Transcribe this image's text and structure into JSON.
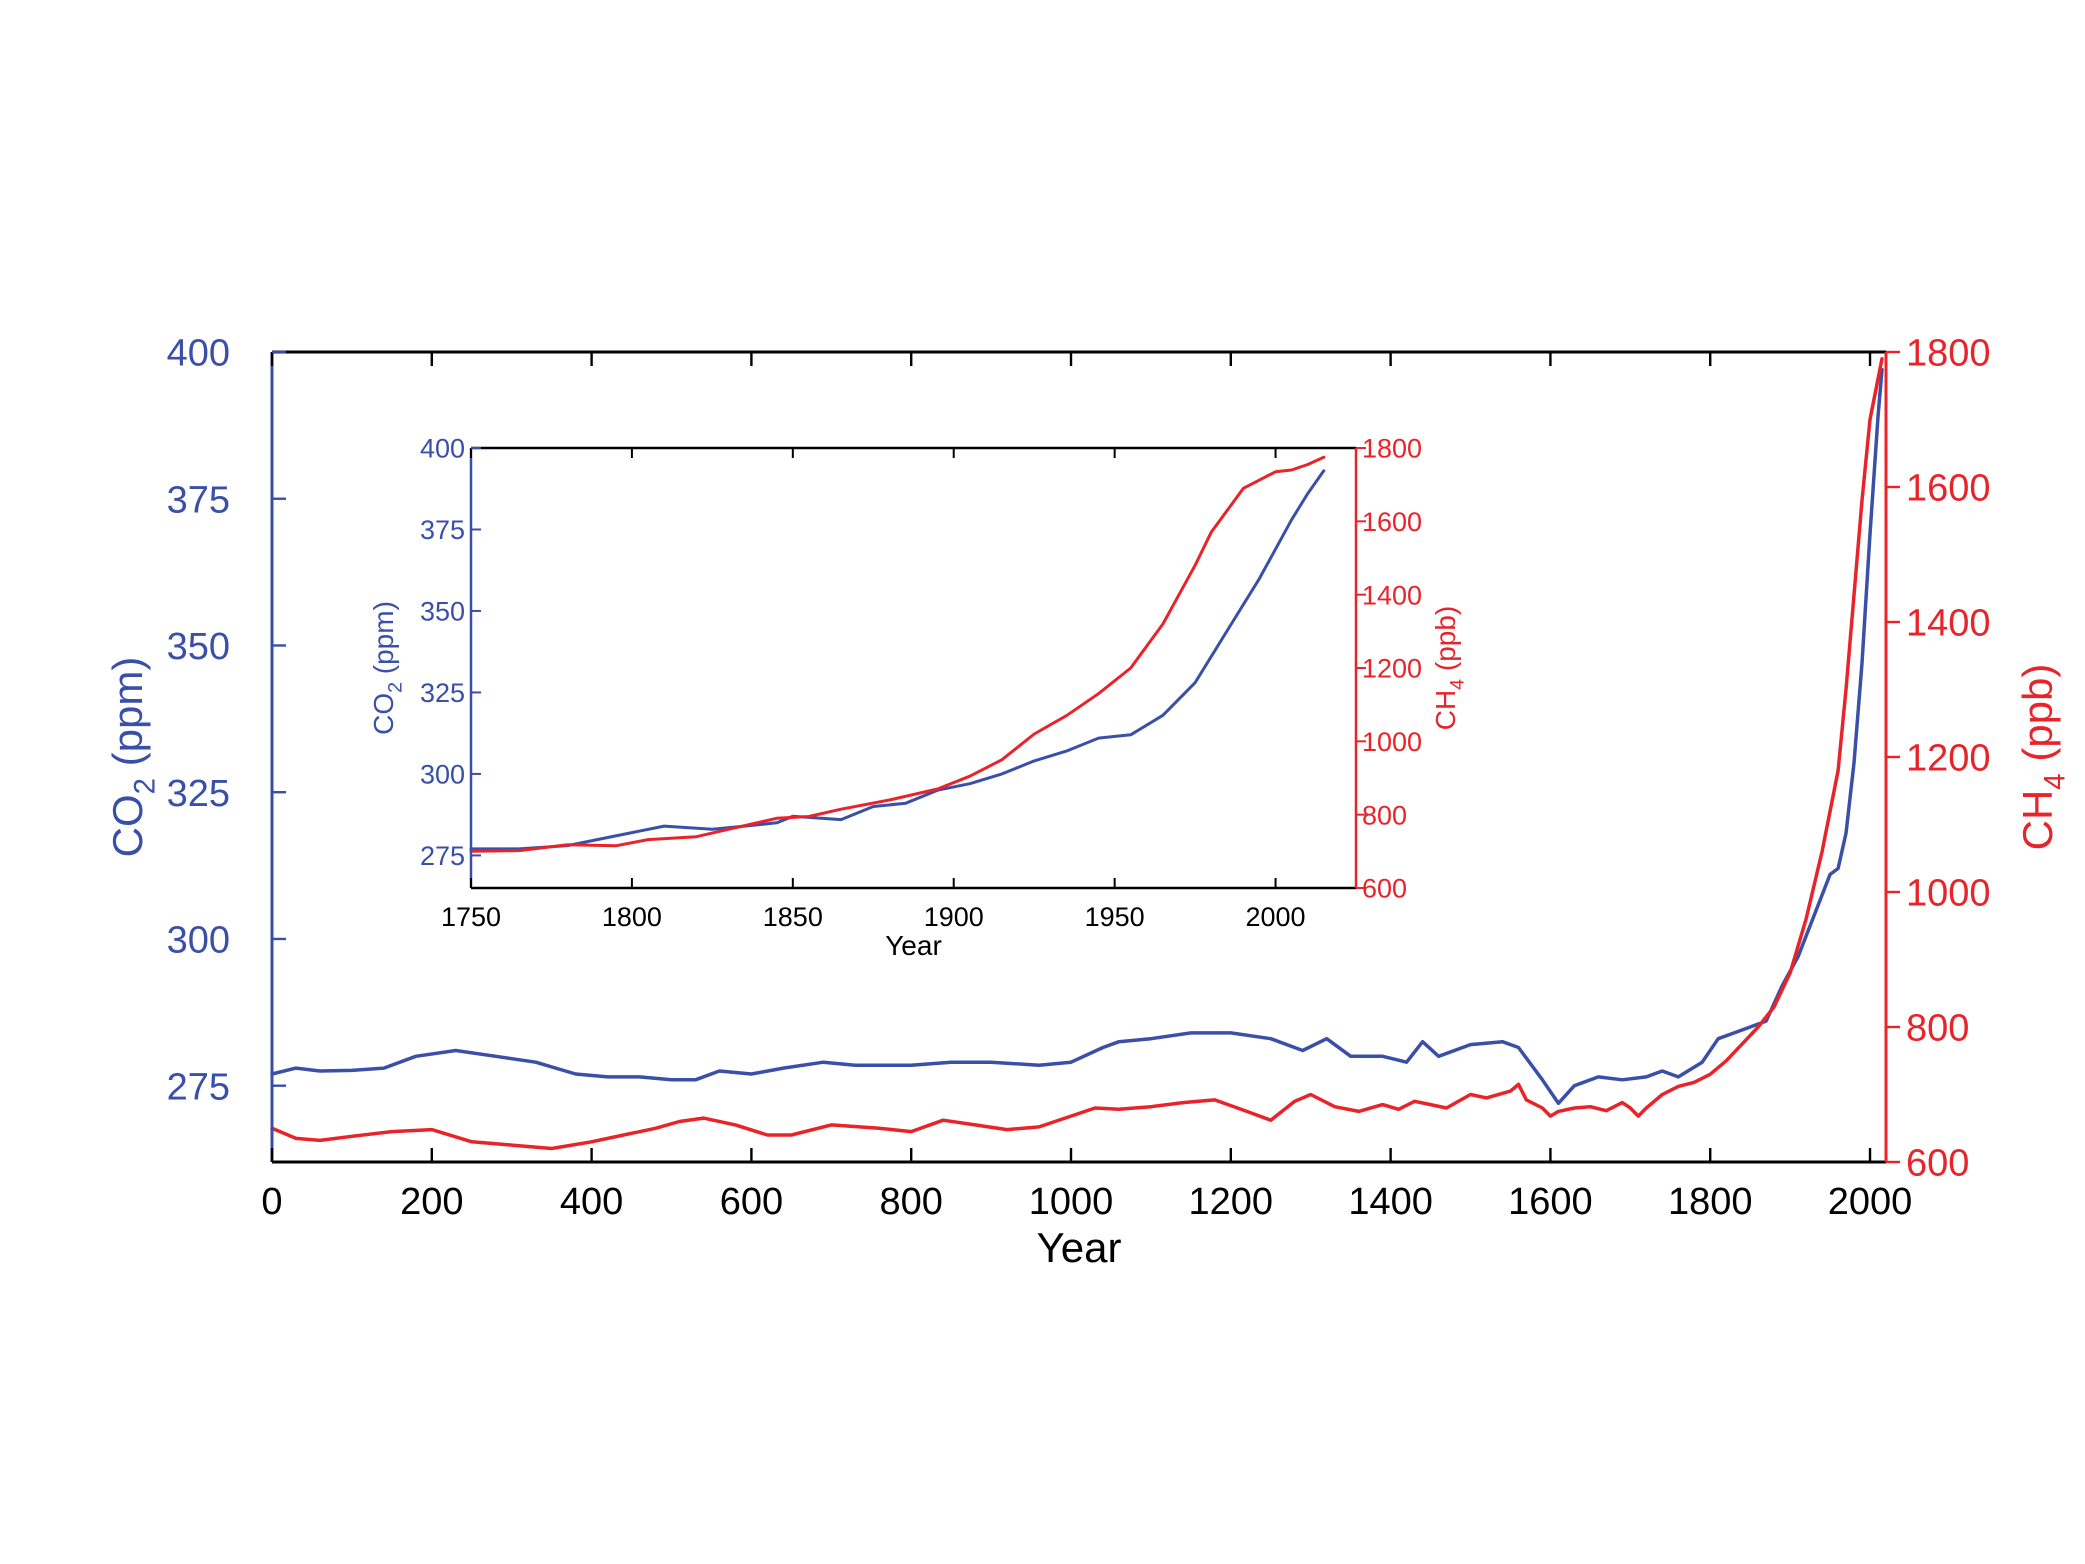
{
  "colors": {
    "co2": "#3a4fa8",
    "ch4": "#e8242a",
    "axis": "#000000"
  },
  "chart_data": [
    {
      "id": "main",
      "type": "line",
      "title": "",
      "xlabel": "Year",
      "ylabel_left": {
        "main": "CO",
        "sub": "2",
        "tail": " (ppm)"
      },
      "ylabel_right": {
        "main": "CH",
        "sub": "4",
        "tail": " (ppb)"
      },
      "xlim": [
        0,
        2020
      ],
      "ylim_left": [
        262,
        400
      ],
      "ylim_right": [
        600,
        1800
      ],
      "xticks": [
        "0",
        "200",
        "400",
        "600",
        "800",
        "1000",
        "1200",
        "1400",
        "1600",
        "1800",
        "2000"
      ],
      "yticks_left": [
        "275",
        "300",
        "325",
        "350",
        "375",
        "400"
      ],
      "yticks_right": [
        "600",
        "800",
        "1000",
        "1200",
        "1400",
        "1600",
        "1800"
      ],
      "grid": false,
      "series": [
        {
          "axis": "left",
          "color": "co2",
          "x": [
            0,
            30,
            60,
            100,
            140,
            180,
            230,
            280,
            330,
            380,
            420,
            460,
            500,
            530,
            560,
            600,
            640,
            690,
            730,
            800,
            850,
            900,
            960,
            1000,
            1040,
            1060,
            1100,
            1150,
            1200,
            1250,
            1290,
            1320,
            1350,
            1390,
            1420,
            1440,
            1460,
            1500,
            1540,
            1560,
            1590,
            1610,
            1630,
            1660,
            1690,
            1720,
            1740,
            1760,
            1790,
            1810,
            1830,
            1850,
            1870,
            1890,
            1910,
            1930,
            1950,
            1960,
            1970,
            1980,
            1990,
            2000,
            2010,
            2015
          ],
          "y": [
            277,
            278,
            277.5,
            277.6,
            278,
            280,
            281,
            280,
            279,
            277,
            276.5,
            276.5,
            276,
            276,
            277.5,
            277,
            278,
            279,
            278.5,
            278.5,
            279,
            279,
            278.5,
            279,
            281.5,
            282.5,
            283,
            284,
            284,
            283,
            281,
            283,
            280,
            280,
            279,
            282.5,
            280,
            282,
            282.5,
            281.5,
            276,
            272,
            275,
            276.5,
            276,
            276.5,
            277.5,
            276.5,
            279,
            283,
            284,
            285,
            286,
            292,
            297,
            304,
            311,
            312,
            318,
            330,
            347,
            369,
            389,
            397
          ]
        },
        {
          "axis": "right",
          "color": "ch4",
          "x": [
            0,
            30,
            60,
            100,
            150,
            200,
            250,
            300,
            350,
            400,
            440,
            480,
            510,
            540,
            580,
            620,
            650,
            700,
            760,
            800,
            840,
            880,
            920,
            960,
            1000,
            1030,
            1060,
            1100,
            1140,
            1180,
            1220,
            1250,
            1280,
            1300,
            1330,
            1360,
            1390,
            1410,
            1430,
            1450,
            1470,
            1500,
            1520,
            1550,
            1560,
            1570,
            1590,
            1600,
            1610,
            1630,
            1650,
            1670,
            1690,
            1700,
            1710,
            1720,
            1740,
            1760,
            1780,
            1800,
            1820,
            1840,
            1860,
            1880,
            1900,
            1920,
            1940,
            1960,
            1970,
            1980,
            1990,
            2000,
            2010,
            2015
          ],
          "y": [
            650,
            635,
            632,
            638,
            645,
            648,
            630,
            625,
            620,
            630,
            640,
            650,
            660,
            665,
            655,
            640,
            640,
            655,
            650,
            645,
            662,
            655,
            648,
            652,
            668,
            680,
            678,
            682,
            688,
            692,
            675,
            662,
            690,
            700,
            682,
            675,
            685,
            678,
            690,
            685,
            680,
            700,
            695,
            705,
            715,
            692,
            680,
            668,
            675,
            680,
            682,
            676,
            688,
            680,
            668,
            680,
            700,
            712,
            718,
            730,
            750,
            775,
            800,
            830,
            880,
            960,
            1060,
            1180,
            1300,
            1440,
            1580,
            1700,
            1760,
            1790
          ]
        }
      ]
    },
    {
      "id": "inset",
      "type": "line",
      "title": "",
      "xlabel": "Year",
      "ylabel_left": {
        "main": "CO",
        "sub": "2",
        "tail": " (ppm)"
      },
      "ylabel_right": {
        "main": "CH",
        "sub": "4",
        "tail": " (ppb)"
      },
      "xlim": [
        1750,
        2025
      ],
      "ylim_left": [
        265,
        400
      ],
      "ylim_right": [
        600,
        1800
      ],
      "xticks": [
        "1750",
        "1800",
        "1850",
        "1900",
        "1950",
        "2000"
      ],
      "yticks_left": [
        "275",
        "300",
        "325",
        "350",
        "375",
        "400"
      ],
      "yticks_right": [
        "600",
        "800",
        "1000",
        "1200",
        "1400",
        "1600",
        "1800"
      ],
      "grid": false,
      "series": [
        {
          "axis": "left",
          "color": "co2",
          "x": [
            1750,
            1765,
            1780,
            1795,
            1810,
            1825,
            1835,
            1845,
            1850,
            1865,
            1875,
            1885,
            1895,
            1905,
            1915,
            1925,
            1935,
            1945,
            1955,
            1965,
            1975,
            1985,
            1995,
            2005,
            2010,
            2015
          ],
          "y": [
            277,
            277,
            278,
            281,
            284,
            283,
            284,
            285,
            287,
            286,
            290,
            291,
            295,
            297,
            300,
            304,
            307,
            311,
            312,
            318,
            328,
            344,
            360,
            378,
            386,
            393
          ]
        },
        {
          "axis": "right",
          "color": "ch4",
          "x": [
            1750,
            1765,
            1780,
            1795,
            1805,
            1820,
            1830,
            1845,
            1855,
            1865,
            1880,
            1895,
            1905,
            1915,
            1925,
            1935,
            1945,
            1955,
            1965,
            1975,
            1980,
            1985,
            1990,
            2000,
            2005,
            2010,
            2015
          ],
          "y": [
            700,
            702,
            718,
            715,
            732,
            740,
            760,
            790,
            795,
            815,
            840,
            870,
            905,
            950,
            1020,
            1070,
            1130,
            1200,
            1320,
            1480,
            1570,
            1630,
            1690,
            1735,
            1740,
            1755,
            1775
          ]
        }
      ]
    }
  ]
}
